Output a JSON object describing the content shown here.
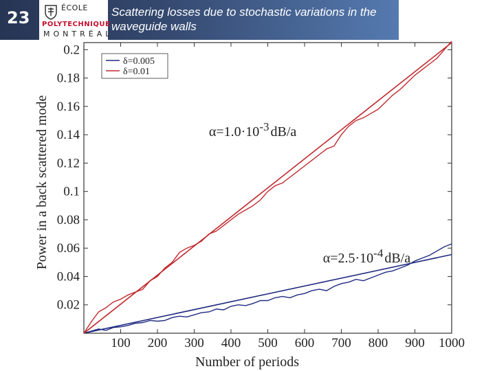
{
  "header": {
    "slide_number": "23",
    "title": "Scattering losses due to stochastic variations in the waveguide walls",
    "logo": {
      "line1": "ÉCOLE",
      "line2": "POLYTECHNIQUE",
      "line3": "MONTRÉAL"
    }
  },
  "colors": {
    "header_dark": "#273554",
    "header_light": "#557ab0",
    "series_blue": "#1f2a80",
    "series_red": "#c0282d",
    "logo_red": "#c8102e"
  },
  "chart_data": {
    "type": "line",
    "xlabel": "Number of periods",
    "ylabel": "Power in a back scattered mode",
    "xlim": [
      0,
      1000
    ],
    "ylim": [
      0,
      0.205
    ],
    "xticks": [
      100,
      200,
      300,
      400,
      500,
      600,
      700,
      800,
      900,
      1000
    ],
    "yticks": [
      0.02,
      0.04,
      0.06,
      0.08,
      0.1,
      0.12,
      0.14,
      0.16,
      0.18,
      0.2
    ],
    "ytick_labels": [
      "0.02",
      "0.04",
      "0.06",
      "0.08",
      "0.1",
      "0.12",
      "0.14",
      "0.16",
      "0.18",
      "0.2"
    ],
    "legend": {
      "position": "top-left",
      "entries": [
        {
          "label": "δ=0.005",
          "color": "#1f2a80"
        },
        {
          "label": "δ=0.01",
          "color": "#c0282d"
        }
      ]
    },
    "annotations": [
      {
        "text": "α=1.0·10",
        "exponent": "-3",
        "unit": "dB/a",
        "x": 340,
        "y": 0.139
      },
      {
        "text": "α=2.5·10",
        "exponent": "-4",
        "unit": "dB/a",
        "x": 650,
        "y": 0.05
      }
    ],
    "series": [
      {
        "name": "δ=0.005",
        "kind": "fit",
        "color": "#1f2a80",
        "x": [
          0,
          1000
        ],
        "y": [
          0,
          0.0555
        ]
      },
      {
        "name": "δ=0.005",
        "kind": "data",
        "color": "#1f2a80",
        "x": [
          0,
          20,
          40,
          60,
          80,
          100,
          120,
          140,
          160,
          180,
          200,
          220,
          240,
          260,
          280,
          300,
          320,
          340,
          360,
          380,
          400,
          420,
          440,
          460,
          480,
          500,
          520,
          540,
          560,
          580,
          600,
          620,
          640,
          660,
          680,
          700,
          720,
          740,
          760,
          780,
          800,
          820,
          840,
          860,
          880,
          900,
          920,
          940,
          960,
          980,
          1000
        ],
        "y": [
          0,
          0.0015,
          0.003,
          0.002,
          0.004,
          0.0045,
          0.0055,
          0.007,
          0.0075,
          0.009,
          0.0085,
          0.009,
          0.011,
          0.012,
          0.0115,
          0.013,
          0.0145,
          0.015,
          0.017,
          0.0165,
          0.019,
          0.02,
          0.0195,
          0.021,
          0.023,
          0.023,
          0.025,
          0.026,
          0.025,
          0.027,
          0.028,
          0.03,
          0.031,
          0.03,
          0.033,
          0.035,
          0.036,
          0.038,
          0.037,
          0.039,
          0.041,
          0.043,
          0.044,
          0.046,
          0.048,
          0.051,
          0.053,
          0.055,
          0.058,
          0.061,
          0.063
        ]
      },
      {
        "name": "δ=0.01",
        "kind": "fit",
        "color": "#c0282d",
        "x": [
          0,
          1000
        ],
        "y": [
          0,
          0.205
        ]
      },
      {
        "name": "δ=0.01",
        "kind": "data",
        "color": "#c0282d",
        "x": [
          0,
          20,
          40,
          60,
          80,
          100,
          120,
          140,
          160,
          180,
          200,
          220,
          240,
          260,
          280,
          300,
          320,
          340,
          360,
          380,
          400,
          420,
          440,
          460,
          480,
          500,
          520,
          540,
          560,
          580,
          600,
          620,
          640,
          660,
          680,
          700,
          720,
          740,
          760,
          780,
          800,
          820,
          840,
          860,
          880,
          900,
          920,
          940,
          960,
          980,
          1000
        ],
        "y": [
          0,
          0.008,
          0.015,
          0.018,
          0.022,
          0.024,
          0.027,
          0.029,
          0.031,
          0.037,
          0.04,
          0.046,
          0.05,
          0.057,
          0.06,
          0.062,
          0.065,
          0.07,
          0.072,
          0.076,
          0.08,
          0.084,
          0.087,
          0.09,
          0.094,
          0.1,
          0.104,
          0.106,
          0.11,
          0.114,
          0.118,
          0.122,
          0.126,
          0.13,
          0.132,
          0.14,
          0.146,
          0.15,
          0.152,
          0.155,
          0.158,
          0.163,
          0.168,
          0.172,
          0.177,
          0.182,
          0.186,
          0.19,
          0.194,
          0.2,
          0.206
        ]
      }
    ]
  }
}
